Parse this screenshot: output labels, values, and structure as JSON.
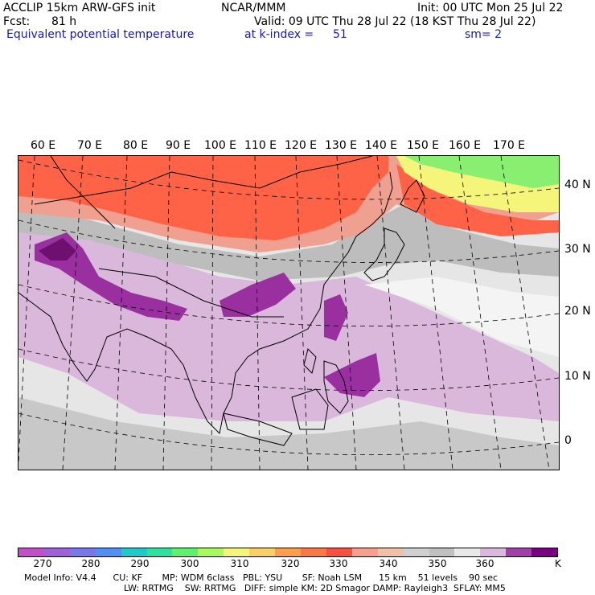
{
  "header": {
    "model": "ACCLIP 15km ARW-GFS init",
    "center": "NCAR/MMM",
    "init": "Init: 00 UTC Mon 25 Jul 22",
    "fcst_label": "Fcst:",
    "fcst_value": "81 h",
    "valid": "Valid: 09 UTC Thu 28 Jul 22 (18 KST Thu 28 Jul 22)",
    "field": "Equivalent potential temperature",
    "level": "at k-index =",
    "level_value": "51",
    "smooth": "sm= 2"
  },
  "map": {
    "lon_labels": [
      "60 E",
      "70 E",
      "80 E",
      "90 E",
      "100 E",
      "110 E",
      "120 E",
      "130 E",
      "140 E",
      "150 E",
      "160 E",
      "170 E"
    ],
    "lat_labels": [
      "40 N",
      "30 N",
      "20 N",
      "10 N",
      "0"
    ],
    "colors": {
      "cold": "#ff6347",
      "warm_high": "#f0a090",
      "mid_gray": "#bdbdbd",
      "light_gray": "#dedede",
      "white": "#f4f4f4",
      "lilac": "#dab8dc",
      "purple": "#9a2fa0",
      "dark_purple": "#6e1070",
      "yellow": "#f4f57a",
      "green": "#88ef70"
    }
  },
  "colorbar": {
    "colors": [
      "#c050c8",
      "#a060d8",
      "#7878e8",
      "#5090f0",
      "#20c8c8",
      "#30e0a0",
      "#60f070",
      "#a8f860",
      "#f4f57a",
      "#f8d068",
      "#f8a050",
      "#f87848",
      "#f85040",
      "#f8a090",
      "#f0c0a8",
      "#d0d0d0",
      "#c0c0c0",
      "#e8e8e8",
      "#dcb8e0",
      "#a040a8",
      "#780080"
    ],
    "ticks": [
      "270",
      "280",
      "290",
      "300",
      "310",
      "320",
      "330",
      "340",
      "350",
      "360"
    ],
    "unit": "K"
  },
  "footer": {
    "line1": "Model Info: V4.4      CU: KF       MP: WDM 6class   PBL: YSU       SF: Noah LSM      15 km    51 levels    90 sec",
    "line2": "LW: RRTMG    SW: RRTMG   DIFF: simple KM: 2D Smagor DAMP: Rayleigh3  SFLAY: MM5"
  }
}
